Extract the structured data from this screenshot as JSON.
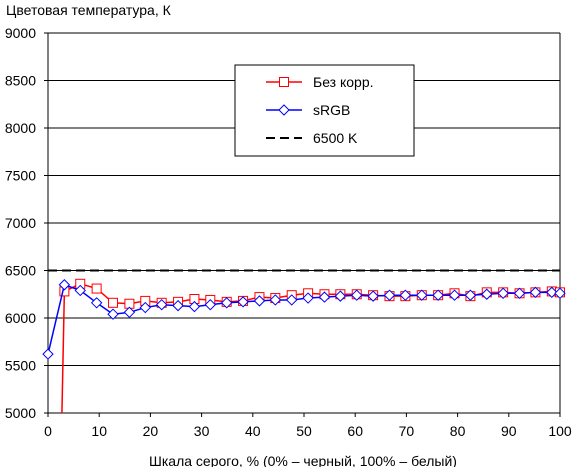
{
  "chart_data": {
    "type": "line",
    "title": "Цветовая температура, К",
    "xlabel": "Шкала серого, % (0% – черный, 100% – белый)",
    "ylabel": "",
    "xlim": [
      0,
      100
    ],
    "ylim": [
      5000,
      9000
    ],
    "x_ticks": [
      0,
      10,
      20,
      30,
      40,
      50,
      60,
      70,
      80,
      90,
      100
    ],
    "y_ticks": [
      5000,
      5500,
      6000,
      6500,
      7000,
      7500,
      8000,
      8500,
      9000
    ],
    "grid": "horizontal",
    "legend_position": "top-right",
    "series": [
      {
        "name": "Без корр.",
        "color": "#ff0000",
        "marker": "square",
        "line_style": "solid",
        "points": [
          [
            2.7,
            4950
          ],
          [
            3.2,
            6280
          ],
          [
            6.3,
            6360
          ],
          [
            9.5,
            6310
          ],
          [
            12.7,
            6160
          ],
          [
            15.9,
            6150
          ],
          [
            19,
            6180
          ],
          [
            22.2,
            6160
          ],
          [
            25.4,
            6170
          ],
          [
            28.6,
            6200
          ],
          [
            31.7,
            6190
          ],
          [
            34.9,
            6170
          ],
          [
            38.1,
            6180
          ],
          [
            41.3,
            6220
          ],
          [
            44.4,
            6210
          ],
          [
            47.6,
            6240
          ],
          [
            50.8,
            6260
          ],
          [
            54,
            6250
          ],
          [
            57.1,
            6250
          ],
          [
            60.3,
            6250
          ],
          [
            63.5,
            6240
          ],
          [
            66.7,
            6230
          ],
          [
            69.8,
            6230
          ],
          [
            73,
            6240
          ],
          [
            76.2,
            6240
          ],
          [
            79.4,
            6260
          ],
          [
            82.5,
            6230
          ],
          [
            85.7,
            6270
          ],
          [
            88.9,
            6270
          ],
          [
            92.1,
            6260
          ],
          [
            95.2,
            6270
          ],
          [
            98.4,
            6280
          ],
          [
            100,
            6270
          ]
        ]
      },
      {
        "name": "sRGB",
        "color": "#0000ff",
        "marker": "diamond",
        "line_style": "solid",
        "points": [
          [
            0,
            5620
          ],
          [
            3.2,
            6350
          ],
          [
            6.3,
            6290
          ],
          [
            9.5,
            6160
          ],
          [
            12.7,
            6040
          ],
          [
            15.9,
            6060
          ],
          [
            19,
            6110
          ],
          [
            22.2,
            6140
          ],
          [
            25.4,
            6130
          ],
          [
            28.6,
            6120
          ],
          [
            31.7,
            6140
          ],
          [
            34.9,
            6160
          ],
          [
            38.1,
            6170
          ],
          [
            41.3,
            6180
          ],
          [
            44.4,
            6190
          ],
          [
            47.6,
            6190
          ],
          [
            50.8,
            6210
          ],
          [
            54,
            6220
          ],
          [
            57.1,
            6230
          ],
          [
            60.3,
            6240
          ],
          [
            63.5,
            6230
          ],
          [
            66.7,
            6240
          ],
          [
            69.8,
            6240
          ],
          [
            73,
            6240
          ],
          [
            76.2,
            6240
          ],
          [
            79.4,
            6240
          ],
          [
            82.5,
            6240
          ],
          [
            85.7,
            6250
          ],
          [
            88.9,
            6260
          ],
          [
            92.1,
            6260
          ],
          [
            95.2,
            6270
          ],
          [
            98.4,
            6270
          ],
          [
            100,
            6260
          ]
        ]
      },
      {
        "name": "6500 K",
        "color": "#000000",
        "marker": "none",
        "line_style": "dashed",
        "points": [
          [
            0,
            6500
          ],
          [
            100,
            6500
          ]
        ]
      }
    ]
  }
}
